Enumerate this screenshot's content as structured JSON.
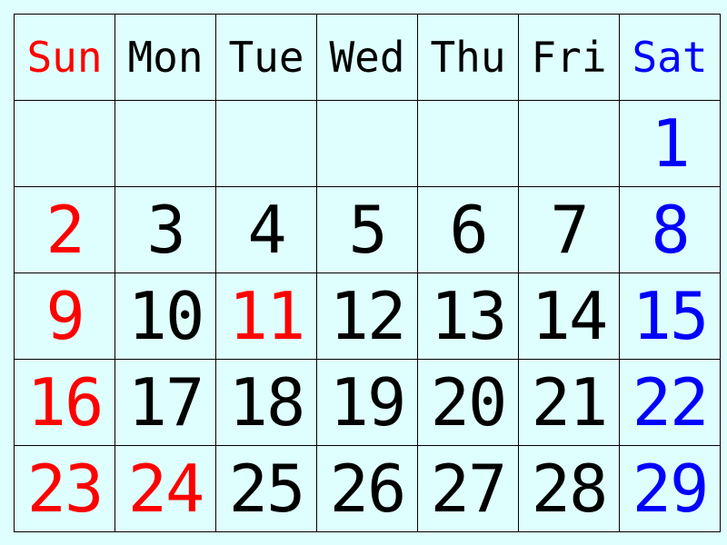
{
  "colors": {
    "background": "#dfffff",
    "grid": "#000000",
    "weekday": "#000000",
    "sunday_holiday": "#ff0000",
    "saturday": "#0000ff"
  },
  "weekdays": [
    {
      "label": "Sun",
      "color": "#ff0000"
    },
    {
      "label": "Mon",
      "color": "#000000"
    },
    {
      "label": "Tue",
      "color": "#000000"
    },
    {
      "label": "Wed",
      "color": "#000000"
    },
    {
      "label": "Thu",
      "color": "#000000"
    },
    {
      "label": "Fri",
      "color": "#000000"
    },
    {
      "label": "Sat",
      "color": "#0000ff"
    }
  ],
  "weeks": [
    [
      {
        "day": "",
        "color": "#000000"
      },
      {
        "day": "",
        "color": "#000000"
      },
      {
        "day": "",
        "color": "#000000"
      },
      {
        "day": "",
        "color": "#000000"
      },
      {
        "day": "",
        "color": "#000000"
      },
      {
        "day": "",
        "color": "#000000"
      },
      {
        "day": "1",
        "color": "#0000ff"
      }
    ],
    [
      {
        "day": "2",
        "color": "#ff0000"
      },
      {
        "day": "3",
        "color": "#000000"
      },
      {
        "day": "4",
        "color": "#000000"
      },
      {
        "day": "5",
        "color": "#000000"
      },
      {
        "day": "6",
        "color": "#000000"
      },
      {
        "day": "7",
        "color": "#000000"
      },
      {
        "day": "8",
        "color": "#0000ff"
      }
    ],
    [
      {
        "day": "9",
        "color": "#ff0000"
      },
      {
        "day": "10",
        "color": "#000000"
      },
      {
        "day": "11",
        "color": "#ff0000"
      },
      {
        "day": "12",
        "color": "#000000"
      },
      {
        "day": "13",
        "color": "#000000"
      },
      {
        "day": "14",
        "color": "#000000"
      },
      {
        "day": "15",
        "color": "#0000ff"
      }
    ],
    [
      {
        "day": "16",
        "color": "#ff0000"
      },
      {
        "day": "17",
        "color": "#000000"
      },
      {
        "day": "18",
        "color": "#000000"
      },
      {
        "day": "19",
        "color": "#000000"
      },
      {
        "day": "20",
        "color": "#000000"
      },
      {
        "day": "21",
        "color": "#000000"
      },
      {
        "day": "22",
        "color": "#0000ff"
      }
    ],
    [
      {
        "day": "23",
        "color": "#ff0000"
      },
      {
        "day": "24",
        "color": "#ff0000"
      },
      {
        "day": "25",
        "color": "#000000"
      },
      {
        "day": "26",
        "color": "#000000"
      },
      {
        "day": "27",
        "color": "#000000"
      },
      {
        "day": "28",
        "color": "#000000"
      },
      {
        "day": "29",
        "color": "#0000ff"
      }
    ]
  ]
}
